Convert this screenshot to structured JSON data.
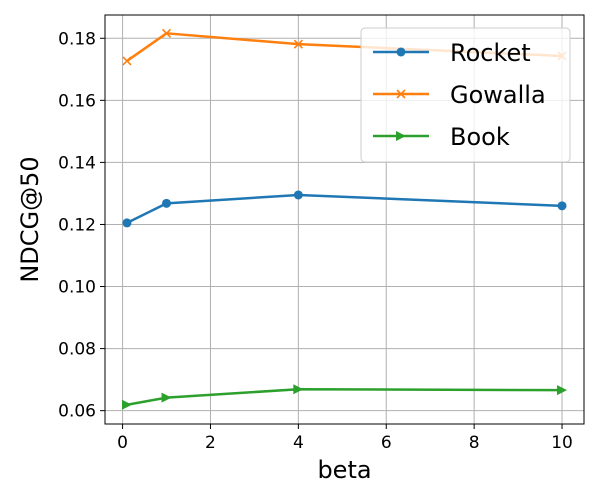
{
  "chart_data": {
    "type": "line",
    "xlabel": "beta",
    "ylabel": "NDCG@50",
    "x": [
      0.1,
      1,
      4,
      10
    ],
    "xlim": [
      -0.4,
      10.5
    ],
    "ylim": [
      0.0557,
      0.1875
    ],
    "xticks": [
      0,
      2,
      4,
      6,
      8,
      10
    ],
    "yticks": [
      0.06,
      0.08,
      0.1,
      0.12,
      0.14,
      0.16,
      0.18
    ],
    "xtick_labels": [
      "0",
      "2",
      "4",
      "6",
      "8",
      "10"
    ],
    "ytick_labels": [
      "0.06",
      "0.08",
      "0.10",
      "0.12",
      "0.14",
      "0.16",
      "0.18"
    ],
    "grid": true,
    "legend_position": "top-right",
    "series": [
      {
        "name": "Rocket",
        "values": [
          0.1205,
          0.1268,
          0.1295,
          0.126
        ],
        "color": "#1f77b4",
        "marker": "circle"
      },
      {
        "name": "Gowalla",
        "values": [
          0.1727,
          0.1816,
          0.1781,
          0.1743
        ],
        "color": "#ff7f0e",
        "marker": "x"
      },
      {
        "name": "Book",
        "values": [
          0.0619,
          0.0642,
          0.0669,
          0.0666
        ],
        "color": "#2ca02c",
        "marker": "triangle-right"
      }
    ]
  }
}
